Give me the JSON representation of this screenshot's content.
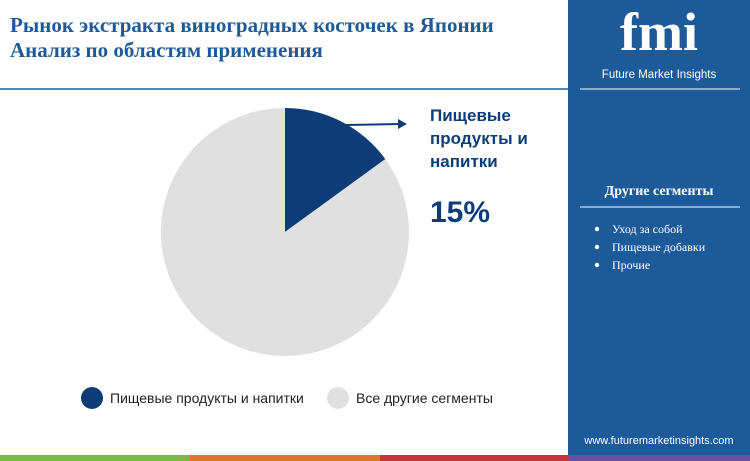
{
  "chart_data": {
    "type": "pie",
    "title": "Рынок экстракта виноградных косточек в Японии",
    "subtitle": "Анализ по областям применения",
    "categories": [
      "Пищевые продукты и напитки",
      "Все другие сегменты"
    ],
    "values": [
      15,
      85
    ],
    "value_labels": [
      "15%",
      null
    ],
    "colors": [
      "#0d3d78",
      "#e0e0e0"
    ]
  },
  "sidebar": {
    "logo": "fmi",
    "brand": "Future Market Insights",
    "heading": "Другие сегменты",
    "items": [
      "Уход за собой",
      "Пищевые добавки",
      "Прочие"
    ],
    "url": "www.futuremarketinsights.com"
  }
}
